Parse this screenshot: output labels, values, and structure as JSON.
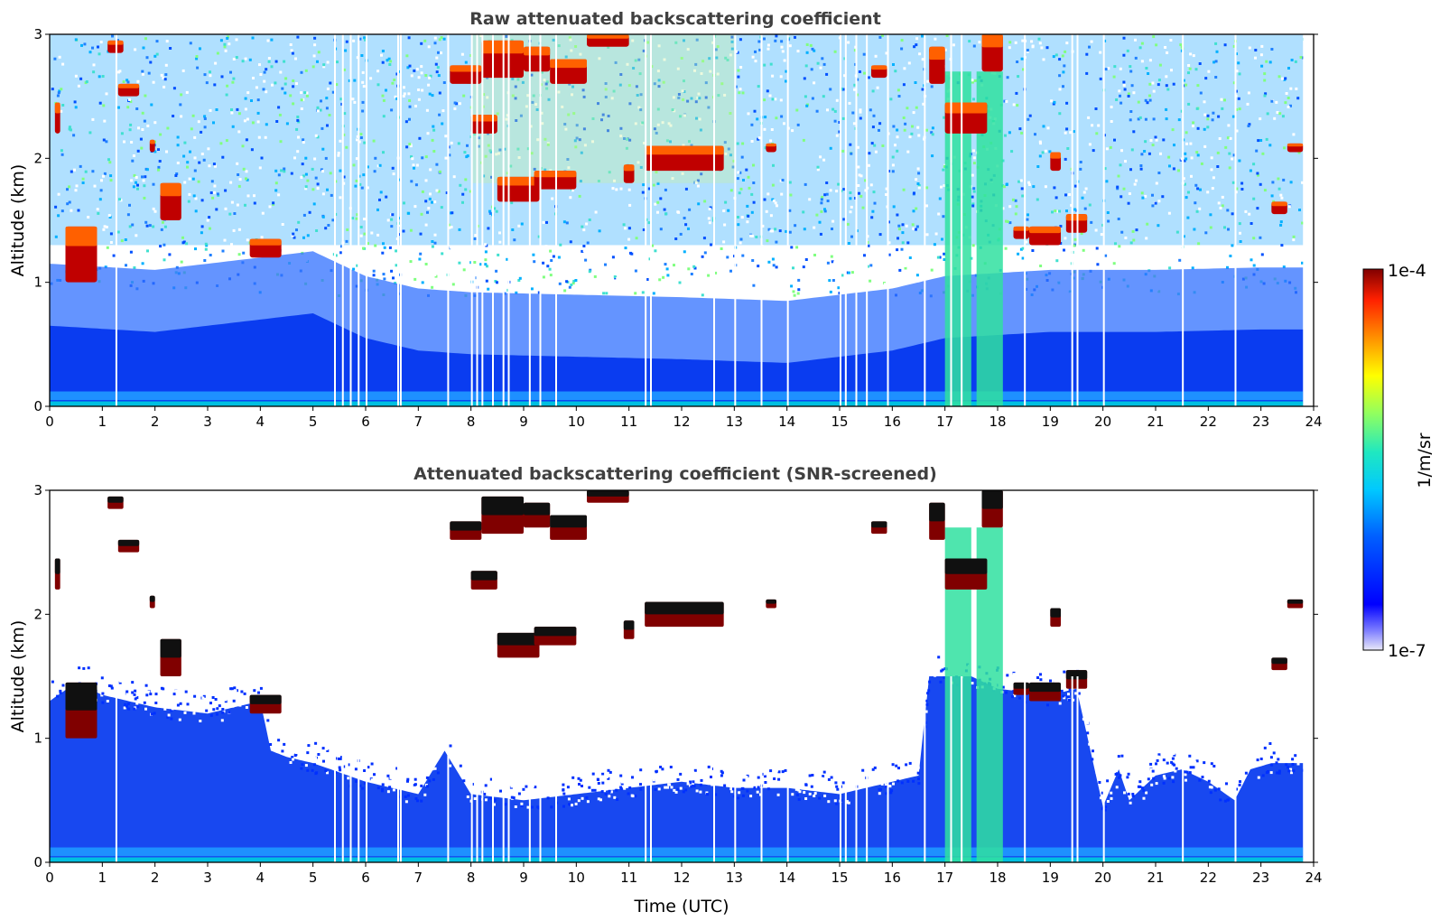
{
  "chart_data": [
    {
      "type": "heatmap",
      "title": "Raw attenuated backscattering coefficient",
      "xlabel": "",
      "ylabel": "Altitude (km)",
      "xlim": [
        0,
        24
      ],
      "ylim": [
        0,
        3
      ],
      "x_ticks": [
        "0",
        "1",
        "2",
        "3",
        "4",
        "5",
        "6",
        "7",
        "8",
        "9",
        "10",
        "11",
        "12",
        "13",
        "14",
        "15",
        "16",
        "17",
        "18",
        "19",
        "20",
        "21",
        "22",
        "23",
        "24"
      ],
      "y_ticks": [
        "0",
        "1",
        "2",
        "3"
      ],
      "data_end_hour": 23.8,
      "boundary_layer_top_km": [
        [
          0,
          0.65
        ],
        [
          2,
          0.6
        ],
        [
          4,
          0.7
        ],
        [
          5,
          0.75
        ],
        [
          6,
          0.55
        ],
        [
          7,
          0.45
        ],
        [
          8,
          0.42
        ],
        [
          10,
          0.4
        ],
        [
          12,
          0.38
        ],
        [
          14,
          0.35
        ],
        [
          16,
          0.45
        ],
        [
          17,
          0.55
        ],
        [
          19,
          0.6
        ],
        [
          21,
          0.6
        ],
        [
          23,
          0.62
        ],
        [
          23.8,
          0.62
        ]
      ],
      "noise_floor_km": 1.3,
      "cloud_layers": [
        {
          "t0": 0.1,
          "t1": 0.2,
          "z0": 2.2,
          "z1": 2.45
        },
        {
          "t0": 0.3,
          "t1": 0.9,
          "z0": 1.0,
          "z1": 1.45
        },
        {
          "t0": 1.1,
          "t1": 1.4,
          "z0": 2.85,
          "z1": 2.95
        },
        {
          "t0": 1.3,
          "t1": 1.7,
          "z0": 2.5,
          "z1": 2.6
        },
        {
          "t0": 1.9,
          "t1": 2.0,
          "z0": 2.05,
          "z1": 2.15
        },
        {
          "t0": 2.1,
          "t1": 2.5,
          "z0": 1.5,
          "z1": 1.8
        },
        {
          "t0": 3.8,
          "t1": 4.4,
          "z0": 1.2,
          "z1": 1.35
        },
        {
          "t0": 7.6,
          "t1": 8.2,
          "z0": 2.6,
          "z1": 2.75
        },
        {
          "t0": 8.2,
          "t1": 9.0,
          "z0": 2.65,
          "z1": 2.95
        },
        {
          "t0": 8.0,
          "t1": 8.5,
          "z0": 2.2,
          "z1": 2.35
        },
        {
          "t0": 8.5,
          "t1": 9.3,
          "z0": 1.65,
          "z1": 1.85
        },
        {
          "t0": 9.0,
          "t1": 9.5,
          "z0": 2.7,
          "z1": 2.9
        },
        {
          "t0": 9.5,
          "t1": 10.2,
          "z0": 2.6,
          "z1": 2.8
        },
        {
          "t0": 9.2,
          "t1": 10.0,
          "z0": 1.75,
          "z1": 1.9
        },
        {
          "t0": 10.2,
          "t1": 11.0,
          "z0": 2.9,
          "z1": 3.0
        },
        {
          "t0": 10.9,
          "t1": 11.1,
          "z0": 1.8,
          "z1": 1.95
        },
        {
          "t0": 11.3,
          "t1": 12.8,
          "z0": 1.9,
          "z1": 2.1
        },
        {
          "t0": 13.6,
          "t1": 13.8,
          "z0": 2.05,
          "z1": 2.12
        },
        {
          "t0": 15.6,
          "t1": 15.9,
          "z0": 2.65,
          "z1": 2.75
        },
        {
          "t0": 16.7,
          "t1": 17.0,
          "z0": 2.6,
          "z1": 2.9
        },
        {
          "t0": 17.0,
          "t1": 17.8,
          "z0": 2.2,
          "z1": 2.45
        },
        {
          "t0": 17.7,
          "t1": 18.1,
          "z0": 2.7,
          "z1": 3.0
        },
        {
          "t0": 18.3,
          "t1": 18.6,
          "z0": 1.35,
          "z1": 1.45
        },
        {
          "t0": 18.6,
          "t1": 19.2,
          "z0": 1.3,
          "z1": 1.45
        },
        {
          "t0": 19.3,
          "t1": 19.7,
          "z0": 1.4,
          "z1": 1.55
        },
        {
          "t0": 19.0,
          "t1": 19.2,
          "z0": 1.9,
          "z1": 2.05
        },
        {
          "t0": 23.5,
          "t1": 23.8,
          "z0": 2.05,
          "z1": 2.12
        },
        {
          "t0": 23.2,
          "t1": 23.5,
          "z0": 1.55,
          "z1": 1.65
        }
      ],
      "precip_columns": [
        [
          17.0,
          17.5
        ],
        [
          17.6,
          18.1
        ]
      ]
    },
    {
      "type": "heatmap",
      "title": "Attenuated backscattering coefficient (SNR-screened)",
      "xlabel": "Time (UTC)",
      "ylabel": "Altitude (km)",
      "xlim": [
        0,
        24
      ],
      "ylim": [
        0,
        3
      ],
      "x_ticks": [
        "0",
        "1",
        "2",
        "3",
        "4",
        "5",
        "6",
        "7",
        "8",
        "9",
        "10",
        "11",
        "12",
        "13",
        "14",
        "15",
        "16",
        "17",
        "18",
        "19",
        "20",
        "21",
        "22",
        "23",
        "24"
      ],
      "y_ticks": [
        "0",
        "1",
        "2",
        "3"
      ],
      "data_end_hour": 23.8,
      "screened_top_km": [
        [
          0,
          1.3
        ],
        [
          0.5,
          1.45
        ],
        [
          1,
          1.35
        ],
        [
          1.5,
          1.3
        ],
        [
          2,
          1.25
        ],
        [
          3,
          1.2
        ],
        [
          4,
          1.3
        ],
        [
          4.2,
          0.9
        ],
        [
          4.5,
          0.85
        ],
        [
          5,
          0.8
        ],
        [
          6,
          0.65
        ],
        [
          7,
          0.55
        ],
        [
          7.5,
          0.9
        ],
        [
          8,
          0.55
        ],
        [
          9,
          0.5
        ],
        [
          10,
          0.55
        ],
        [
          11,
          0.6
        ],
        [
          12,
          0.65
        ],
        [
          13,
          0.6
        ],
        [
          14,
          0.6
        ],
        [
          15,
          0.55
        ],
        [
          16,
          0.65
        ],
        [
          16.5,
          0.7
        ],
        [
          16.7,
          1.5
        ],
        [
          17,
          1.5
        ],
        [
          17.5,
          1.5
        ],
        [
          18,
          1.4
        ],
        [
          19,
          1.35
        ],
        [
          19.5,
          1.4
        ],
        [
          20,
          0.45
        ],
        [
          20.3,
          0.75
        ],
        [
          20.5,
          0.5
        ],
        [
          21,
          0.7
        ],
        [
          21.5,
          0.75
        ],
        [
          22,
          0.65
        ],
        [
          22.5,
          0.5
        ],
        [
          22.8,
          0.75
        ],
        [
          23.2,
          0.8
        ],
        [
          23.8,
          0.8
        ]
      ]
    }
  ],
  "colorbar": {
    "label": "1/m/sr",
    "max_label": "1e-4",
    "min_label": "1e-7",
    "scale": "log",
    "colormap": "jet",
    "range": [
      1e-07,
      0.0001
    ]
  }
}
